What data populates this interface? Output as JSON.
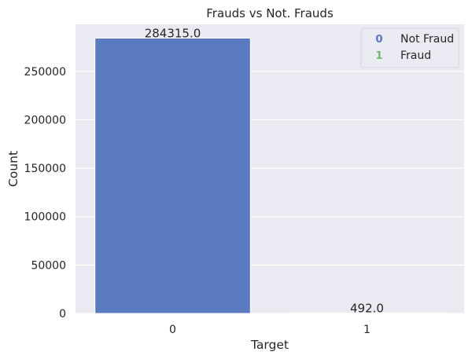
{
  "chart_data": {
    "type": "bar",
    "title": "Frauds vs Not. Frauds",
    "xlabel": "Target",
    "ylabel": "Count",
    "categories": [
      "0",
      "1"
    ],
    "values": [
      284315,
      492
    ],
    "data_labels": [
      "284315.0",
      "492.0"
    ],
    "ylim": [
      0,
      298530
    ],
    "yticks": [
      0,
      50000,
      100000,
      150000,
      200000,
      250000
    ],
    "grid": true,
    "bar_color": "#5a7bc0",
    "background": "#eaeaf2",
    "legend": {
      "placement": "top-right",
      "entries": [
        {
          "marker": "0",
          "label": "Not Fraud",
          "color": "#5a7bc0"
        },
        {
          "marker": "1",
          "label": "Fraud",
          "color": "#6dbe6d"
        }
      ]
    }
  }
}
